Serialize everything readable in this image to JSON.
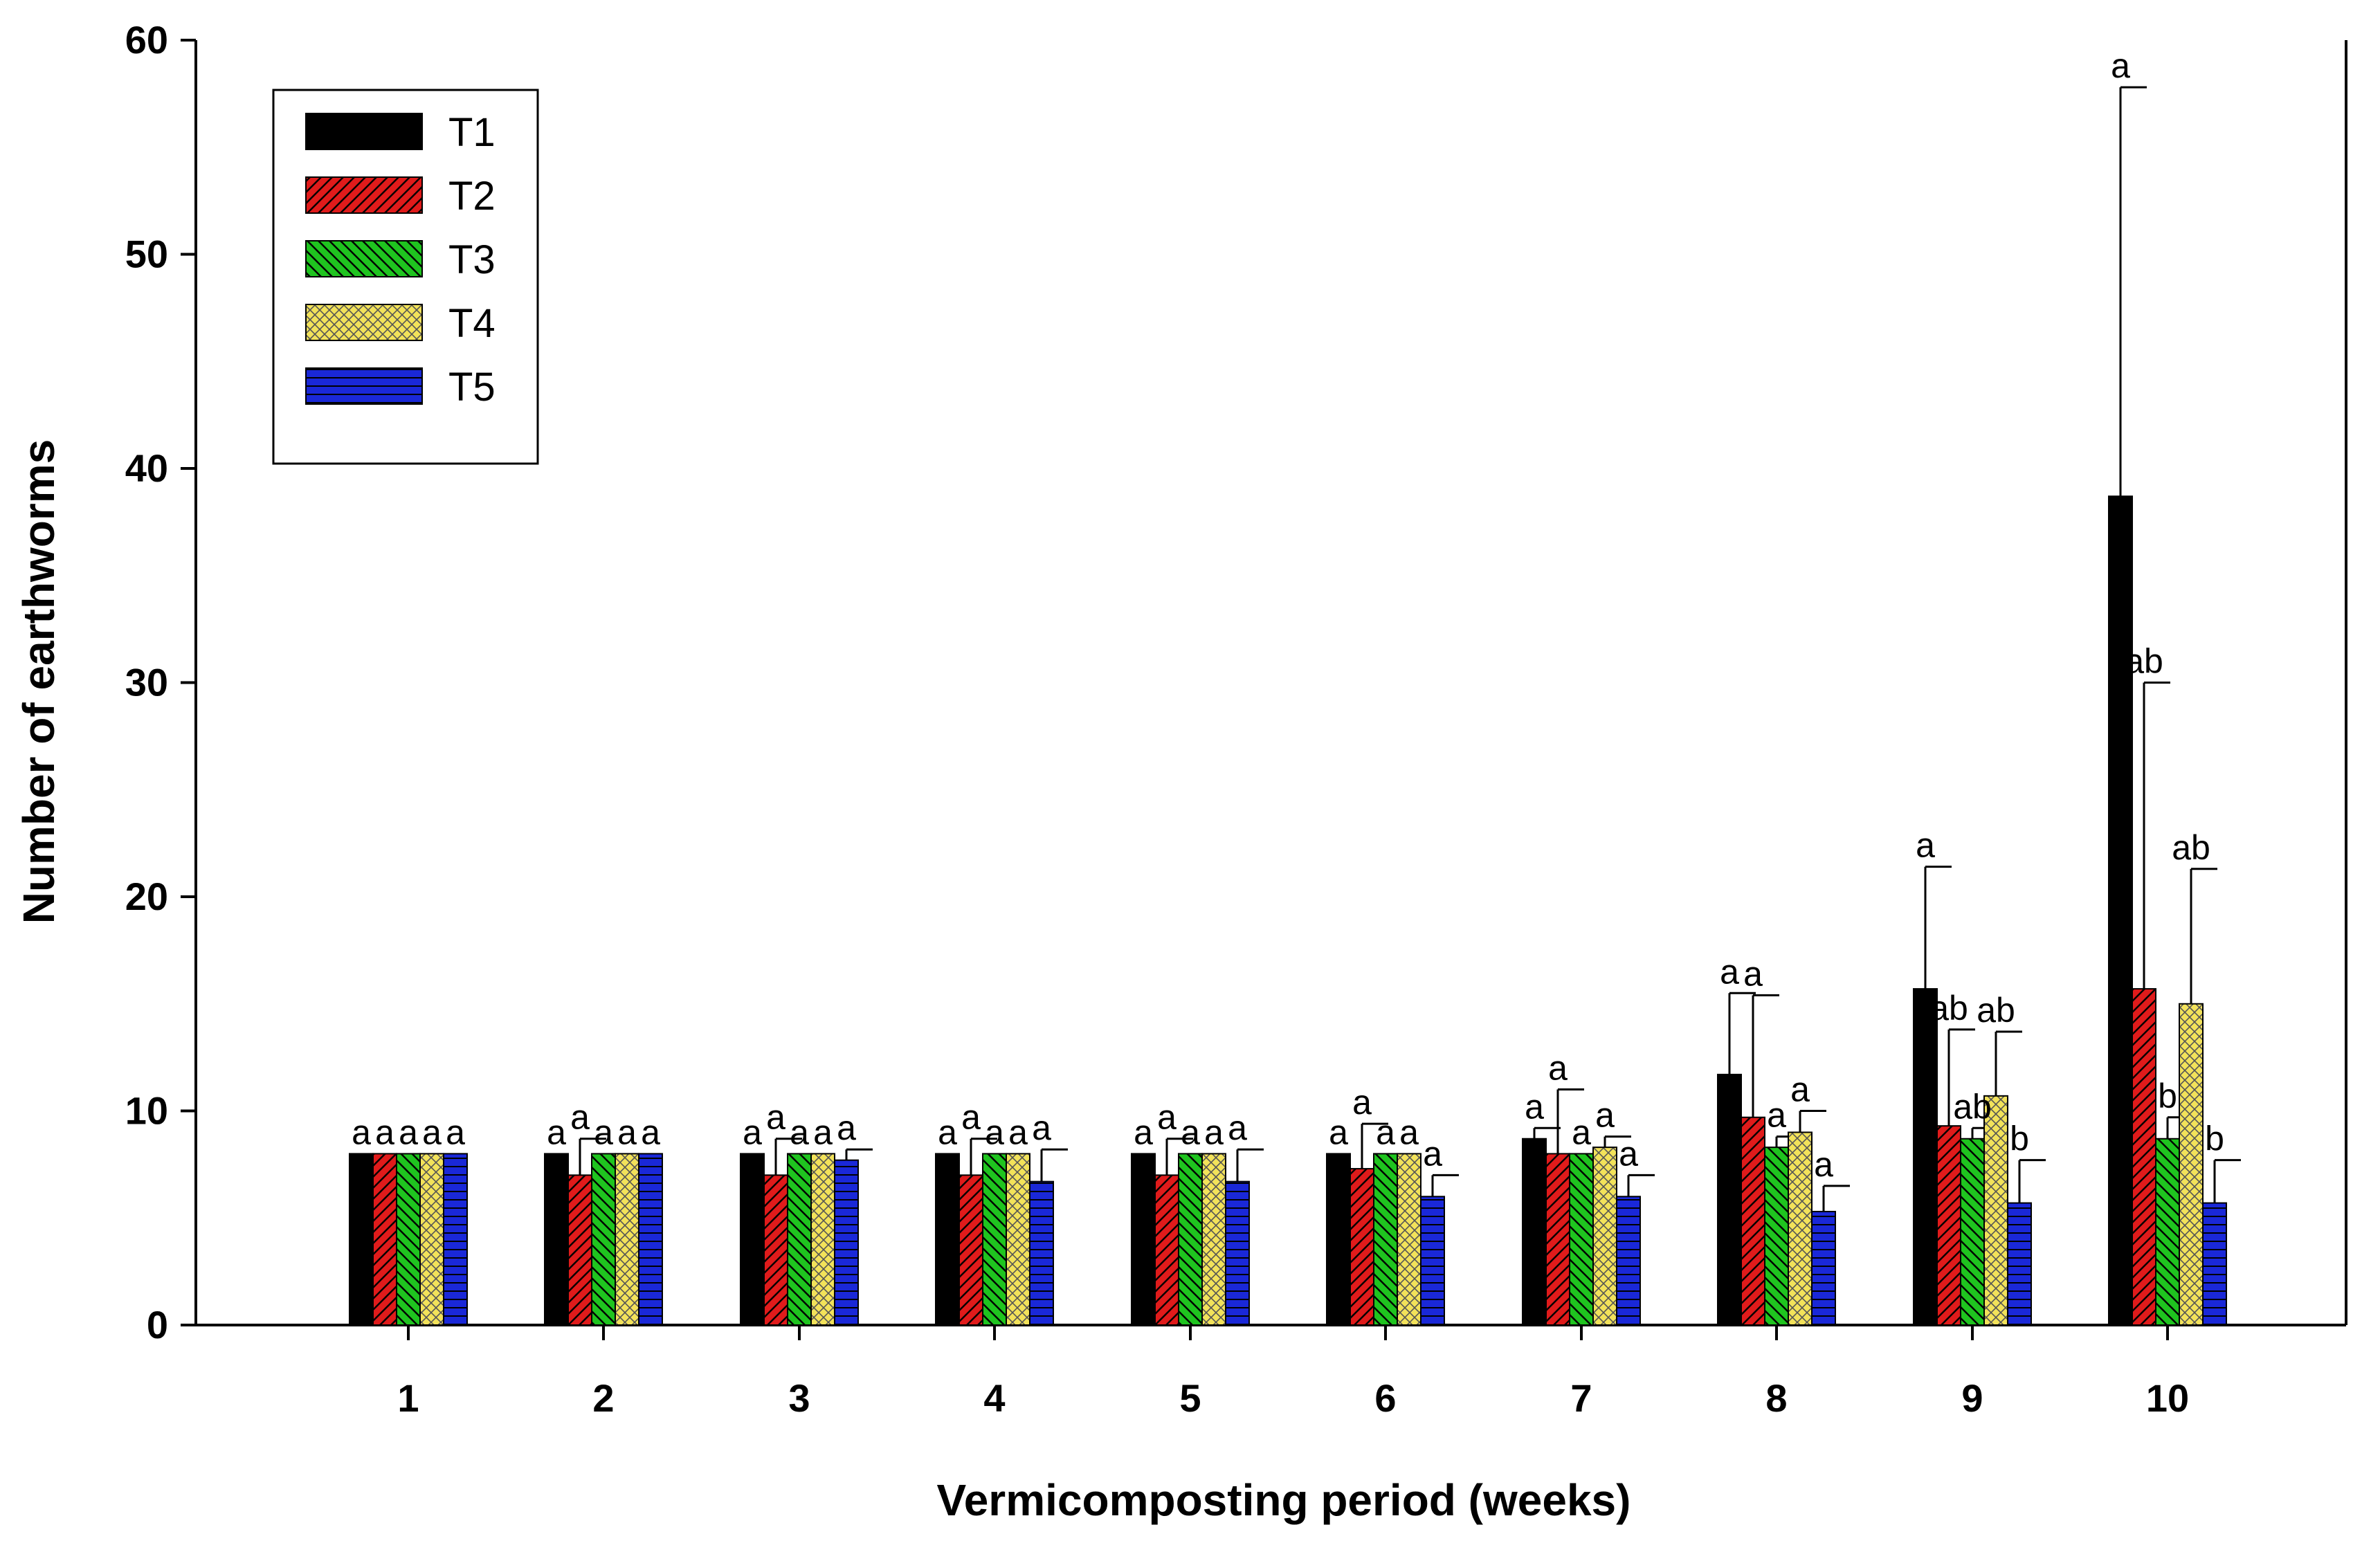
{
  "chart_data": {
    "type": "bar",
    "title": "",
    "xlabel": "Vermicomposting period (weeks)",
    "ylabel": "Number of earthworms",
    "ylim": [
      0,
      60
    ],
    "yticks": [
      0,
      10,
      20,
      30,
      40,
      50,
      60
    ],
    "categories": [
      "1",
      "2",
      "3",
      "4",
      "5",
      "6",
      "7",
      "8",
      "9",
      "10"
    ],
    "legend_position": "top-left",
    "grid": false,
    "series": [
      {
        "name": "T1",
        "color": "#000000",
        "pattern": "solid",
        "values": [
          8,
          8,
          8,
          8,
          8,
          8,
          8.7,
          11.7,
          15.7,
          38.7
        ],
        "errors": [
          0,
          0,
          0,
          0,
          0,
          0,
          0.5,
          3.8,
          5.7,
          19.1
        ],
        "labels": [
          "a",
          "a",
          "a",
          "a",
          "a",
          "a",
          "a",
          "a",
          "a",
          "a"
        ]
      },
      {
        "name": "T2",
        "color": "#e01b1b",
        "pattern": "diagonal",
        "values": [
          8,
          7,
          7,
          7,
          7,
          7.3,
          8,
          9.7,
          9.3,
          15.7
        ],
        "errors": [
          0,
          1.7,
          1.7,
          1.7,
          1.7,
          2.1,
          3.0,
          5.7,
          4.5,
          14.3
        ],
        "labels": [
          "a",
          "a",
          "a",
          "a",
          "a",
          "a",
          "a",
          "a",
          "ab",
          "ab"
        ]
      },
      {
        "name": "T3",
        "color": "#1fc41f",
        "pattern": "diagonal-reverse",
        "values": [
          8,
          8,
          8,
          8,
          8,
          8,
          8,
          8.3,
          8.7,
          8.7
        ],
        "errors": [
          0,
          0,
          0,
          0,
          0,
          0,
          0,
          0.5,
          0.5,
          1.0
        ],
        "labels": [
          "a",
          "a",
          "a",
          "a",
          "a",
          "a",
          "a",
          "a",
          "ab",
          "b"
        ]
      },
      {
        "name": "T4",
        "color": "#f2e25a",
        "pattern": "crosshatch",
        "values": [
          8,
          8,
          8,
          8,
          8,
          8,
          8.3,
          9.0,
          10.7,
          15.0
        ],
        "errors": [
          0,
          0,
          0,
          0,
          0,
          0,
          0.5,
          1.0,
          3.0,
          6.3
        ],
        "labels": [
          "a",
          "a",
          "a",
          "a",
          "a",
          "a",
          "a",
          "a",
          "ab",
          "ab"
        ]
      },
      {
        "name": "T5",
        "color": "#1a28d8",
        "pattern": "horizontal",
        "values": [
          8,
          8,
          7.7,
          6.7,
          6.7,
          6.0,
          6.0,
          5.3,
          5.7,
          5.7
        ],
        "errors": [
          0,
          0,
          0.5,
          1.5,
          1.5,
          1.0,
          1.0,
          1.2,
          2.0,
          2.0
        ],
        "labels": [
          "a",
          "a",
          "a",
          "a",
          "a",
          "a",
          "a",
          "a",
          "b",
          "b"
        ]
      }
    ]
  }
}
